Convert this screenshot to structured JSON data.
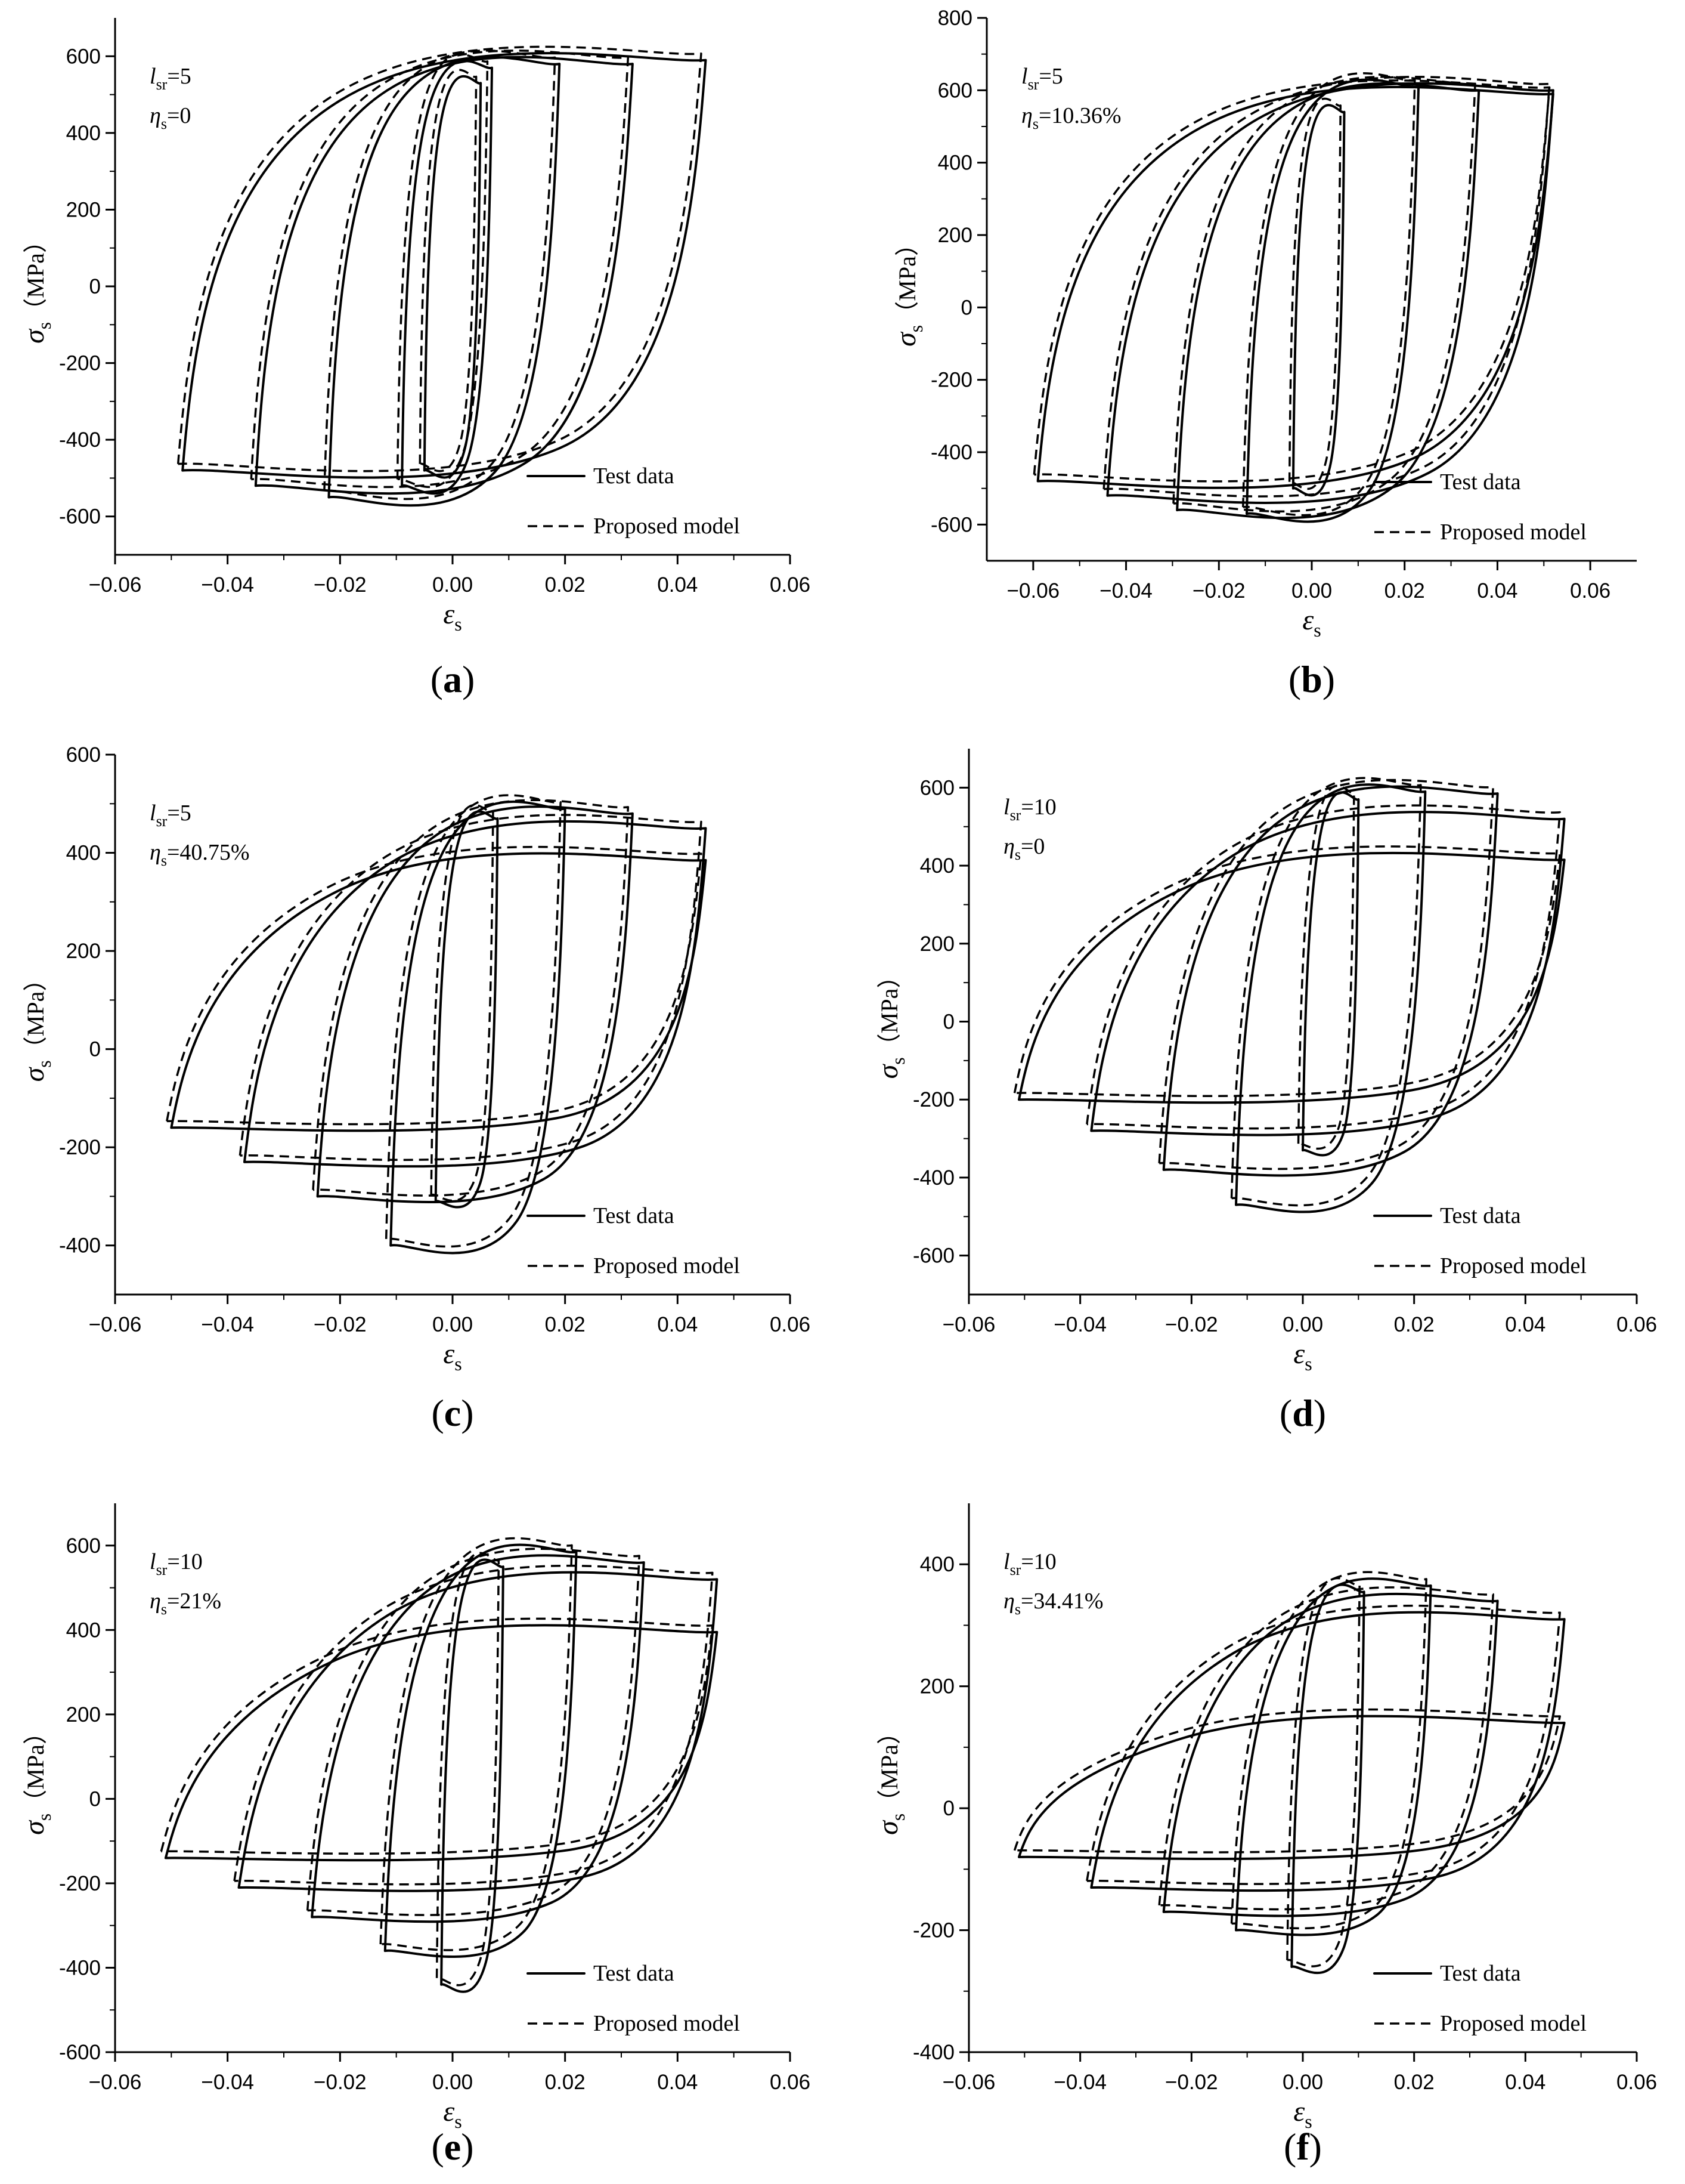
{
  "legend": {
    "test": "Test data",
    "model": "Proposed model"
  },
  "axis_titles": {
    "x_symbol": "ε",
    "x_sub": "s",
    "y_symbol": "σ",
    "y_sub": "s",
    "y_unit": "（MPa）"
  },
  "chart_data": [
    {
      "type": "line",
      "panel": "(a)",
      "annotation": {
        "l_label": "l",
        "l_sub": "sr",
        "l_value": "=5",
        "eta_label": "η",
        "eta_sub": "s",
        "eta_value": "=0"
      },
      "xlim": [
        -0.06,
        0.06
      ],
      "ylim": [
        -700,
        700
      ],
      "xticks": [
        -0.06,
        -0.04,
        -0.02,
        0.0,
        0.02,
        0.04,
        0.06
      ],
      "xtick_labels": [
        "−0.06",
        "−0.04",
        "−0.02",
        "0.00",
        "0.02",
        "0.04",
        "0.06"
      ],
      "yticks": [
        -600,
        -400,
        -200,
        0,
        200,
        400,
        600
      ],
      "ytick_labels": [
        "-600",
        "-400",
        "-200",
        "0",
        "200",
        "400",
        "600"
      ],
      "cycles": [
        {
          "xmin": -0.005,
          "xmax": 0.005,
          "ymax": 530,
          "ymin": -480
        },
        {
          "xmin": -0.009,
          "xmax": 0.007,
          "ymax": 570,
          "ymin": -520
        },
        {
          "xmin": -0.022,
          "xmax": 0.019,
          "ymax": 580,
          "ymin": -550
        },
        {
          "xmin": -0.035,
          "xmax": 0.032,
          "ymax": 580,
          "ymin": -520
        },
        {
          "xmin": -0.048,
          "xmax": 0.045,
          "ymax": 590,
          "ymin": -480
        }
      ]
    },
    {
      "type": "line",
      "panel": "(b)",
      "annotation": {
        "l_label": "l",
        "l_sub": "sr",
        "l_value": "=5",
        "eta_label": "η",
        "eta_sub": "s",
        "eta_value": "=10.36%"
      },
      "xlim": [
        -0.07,
        0.07
      ],
      "ylim": [
        -700,
        800
      ],
      "xticks": [
        -0.06,
        -0.04,
        -0.02,
        0.0,
        0.02,
        0.04,
        0.06
      ],
      "xtick_labels": [
        "−0.06",
        "−0.04",
        "−0.02",
        "0.00",
        "0.02",
        "0.04",
        "0.06"
      ],
      "yticks": [
        -600,
        -400,
        -200,
        0,
        200,
        400,
        600,
        800
      ],
      "ytick_labels": [
        "-600",
        "-400",
        "-200",
        "0",
        "200",
        "400",
        "600",
        "800"
      ],
      "cycles": [
        {
          "xmin": -0.004,
          "xmax": 0.007,
          "ymax": 540,
          "ymin": -500
        },
        {
          "xmin": -0.014,
          "xmax": 0.023,
          "ymax": 610,
          "ymin": -570
        },
        {
          "xmin": -0.029,
          "xmax": 0.036,
          "ymax": 600,
          "ymin": -560
        },
        {
          "xmin": -0.044,
          "xmax": 0.052,
          "ymax": 600,
          "ymin": -520
        },
        {
          "xmin": -0.059,
          "xmax": 0.052,
          "ymax": 590,
          "ymin": -480
        }
      ]
    },
    {
      "type": "line",
      "panel": "(c)",
      "annotation": {
        "l_label": "l",
        "l_sub": "sr",
        "l_value": "=5",
        "eta_label": "η",
        "eta_sub": "s",
        "eta_value": "=40.75%"
      },
      "xlim": [
        -0.06,
        0.06
      ],
      "ylim": [
        -500,
        600
      ],
      "xticks": [
        -0.06,
        -0.04,
        -0.02,
        0.0,
        0.02,
        0.04,
        0.06
      ],
      "xtick_labels": [
        "−0.06",
        "−0.04",
        "−0.02",
        "0.00",
        "0.02",
        "0.04",
        "0.06"
      ],
      "yticks": [
        -400,
        -200,
        0,
        200,
        400,
        600
      ],
      "ytick_labels": [
        "-400",
        "-200",
        "0",
        "200",
        "400",
        "600"
      ],
      "cycles": [
        {
          "xmin": -0.003,
          "xmax": 0.008,
          "ymax": 470,
          "ymin": -310
        },
        {
          "xmin": -0.011,
          "xmax": 0.02,
          "ymax": 490,
          "ymin": -400
        },
        {
          "xmin": -0.024,
          "xmax": 0.032,
          "ymax": 480,
          "ymin": -300
        },
        {
          "xmin": -0.037,
          "xmax": 0.045,
          "ymax": 450,
          "ymin": -230
        },
        {
          "xmin": -0.05,
          "xmax": 0.045,
          "ymax": 385,
          "ymin": -160
        }
      ]
    },
    {
      "type": "line",
      "panel": "(d)",
      "annotation": {
        "l_label": "l",
        "l_sub": "sr",
        "l_value": "=10",
        "eta_label": "η",
        "eta_sub": "s",
        "eta_value": "=0"
      },
      "xlim": [
        -0.06,
        0.06
      ],
      "ylim": [
        -700,
        700
      ],
      "xticks": [
        -0.06,
        -0.04,
        -0.02,
        0.0,
        0.02,
        0.04,
        0.06
      ],
      "xtick_labels": [
        "−0.06",
        "−0.04",
        "−0.02",
        "0.00",
        "0.02",
        "0.04",
        "0.06"
      ],
      "yticks": [
        -600,
        -400,
        -200,
        0,
        200,
        400,
        600
      ],
      "ytick_labels": [
        "-600",
        "-400",
        "-200",
        "0",
        "200",
        "400",
        "600"
      ],
      "cycles": [
        {
          "xmin": 0.0,
          "xmax": 0.01,
          "ymax": 570,
          "ymin": -330
        },
        {
          "xmin": -0.012,
          "xmax": 0.022,
          "ymax": 590,
          "ymin": -470
        },
        {
          "xmin": -0.025,
          "xmax": 0.035,
          "ymax": 585,
          "ymin": -380
        },
        {
          "xmin": -0.038,
          "xmax": 0.047,
          "ymax": 520,
          "ymin": -280
        },
        {
          "xmin": -0.051,
          "xmax": 0.047,
          "ymax": 415,
          "ymin": -200
        }
      ]
    },
    {
      "type": "line",
      "panel": "(e)",
      "annotation": {
        "l_label": "l",
        "l_sub": "sr",
        "l_value": "=10",
        "eta_label": "η",
        "eta_sub": "s",
        "eta_value": "=21%"
      },
      "xlim": [
        -0.06,
        0.06
      ],
      "ylim": [
        -600,
        700
      ],
      "xticks": [
        -0.06,
        -0.04,
        -0.02,
        0.0,
        0.02,
        0.04,
        0.06
      ],
      "xtick_labels": [
        "−0.06",
        "−0.04",
        "−0.02",
        "0.00",
        "0.02",
        "0.04",
        "0.06"
      ],
      "yticks": [
        -600,
        -400,
        -200,
        0,
        200,
        400,
        600
      ],
      "ytick_labels": [
        "-600",
        "-400",
        "-200",
        "0",
        "200",
        "400",
        "600"
      ],
      "cycles": [
        {
          "xmin": -0.002,
          "xmax": 0.009,
          "ymax": 550,
          "ymin": -440
        },
        {
          "xmin": -0.012,
          "xmax": 0.022,
          "ymax": 585,
          "ymin": -360
        },
        {
          "xmin": -0.025,
          "xmax": 0.034,
          "ymax": 560,
          "ymin": -280
        },
        {
          "xmin": -0.038,
          "xmax": 0.047,
          "ymax": 520,
          "ymin": -210
        },
        {
          "xmin": -0.051,
          "xmax": 0.047,
          "ymax": 395,
          "ymin": -140
        }
      ]
    },
    {
      "type": "line",
      "panel": "(f)",
      "annotation": {
        "l_label": "l",
        "l_sub": "sr",
        "l_value": "=10",
        "eta_label": "η",
        "eta_sub": "s",
        "eta_value": "=34.41%"
      },
      "xlim": [
        -0.06,
        0.06
      ],
      "ylim": [
        -400,
        500
      ],
      "xticks": [
        -0.06,
        -0.04,
        -0.02,
        0.0,
        0.02,
        0.04,
        0.06
      ],
      "xtick_labels": [
        "−0.06",
        "−0.04",
        "−0.02",
        "0.00",
        "0.02",
        "0.04",
        "0.06"
      ],
      "yticks": [
        -400,
        -200,
        0,
        200,
        400
      ],
      "ytick_labels": [
        "-400",
        "-200",
        "0",
        "200",
        "400"
      ],
      "cycles": [
        {
          "xmin": -0.002,
          "xmax": 0.011,
          "ymax": 355,
          "ymin": -260
        },
        {
          "xmin": -0.012,
          "xmax": 0.023,
          "ymax": 365,
          "ymin": -200
        },
        {
          "xmin": -0.025,
          "xmax": 0.035,
          "ymax": 340,
          "ymin": -170
        },
        {
          "xmin": -0.038,
          "xmax": 0.047,
          "ymax": 310,
          "ymin": -130
        },
        {
          "xmin": -0.051,
          "xmax": 0.047,
          "ymax": 140,
          "ymin": -80
        }
      ]
    }
  ]
}
